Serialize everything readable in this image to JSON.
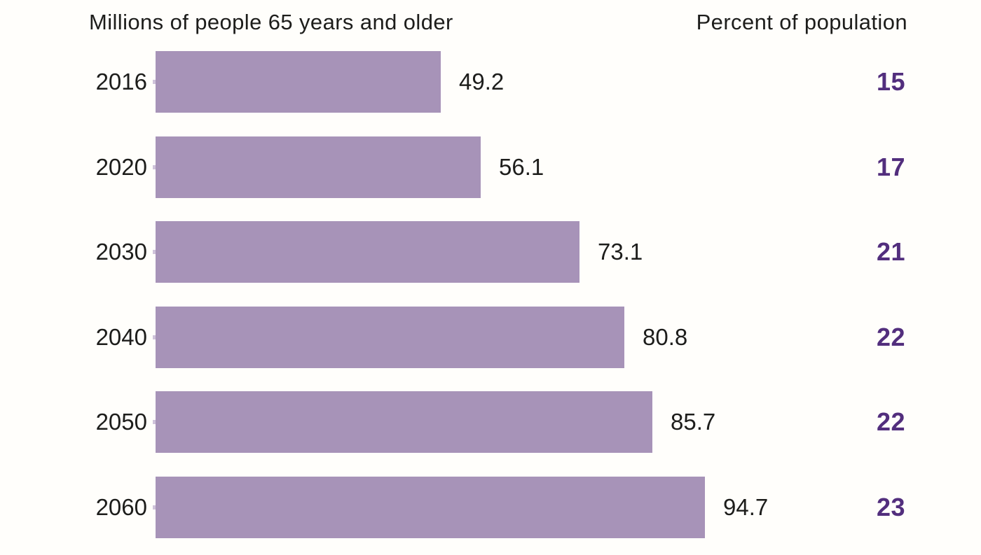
{
  "header": {
    "left_title": "Millions of people 65 years and older",
    "right_title": "Percent of population"
  },
  "chart_data": {
    "type": "bar",
    "orientation": "horizontal",
    "title": "Millions of people 65 years and older",
    "secondary_column_title": "Percent of population",
    "categories": [
      "2016",
      "2020",
      "2030",
      "2040",
      "2050",
      "2060"
    ],
    "series": [
      {
        "name": "Millions of people 65 years and older",
        "values": [
          49.2,
          56.1,
          73.1,
          80.8,
          85.7,
          94.7
        ]
      },
      {
        "name": "Percent of population",
        "values": [
          15,
          17,
          21,
          22,
          22,
          23
        ]
      }
    ],
    "xlim": [
      0,
      94.7
    ],
    "grid": false,
    "legend": "none",
    "value_labels": "outside-end",
    "bar_color": "#a793b8",
    "percent_label_color": "#522e7d"
  }
}
